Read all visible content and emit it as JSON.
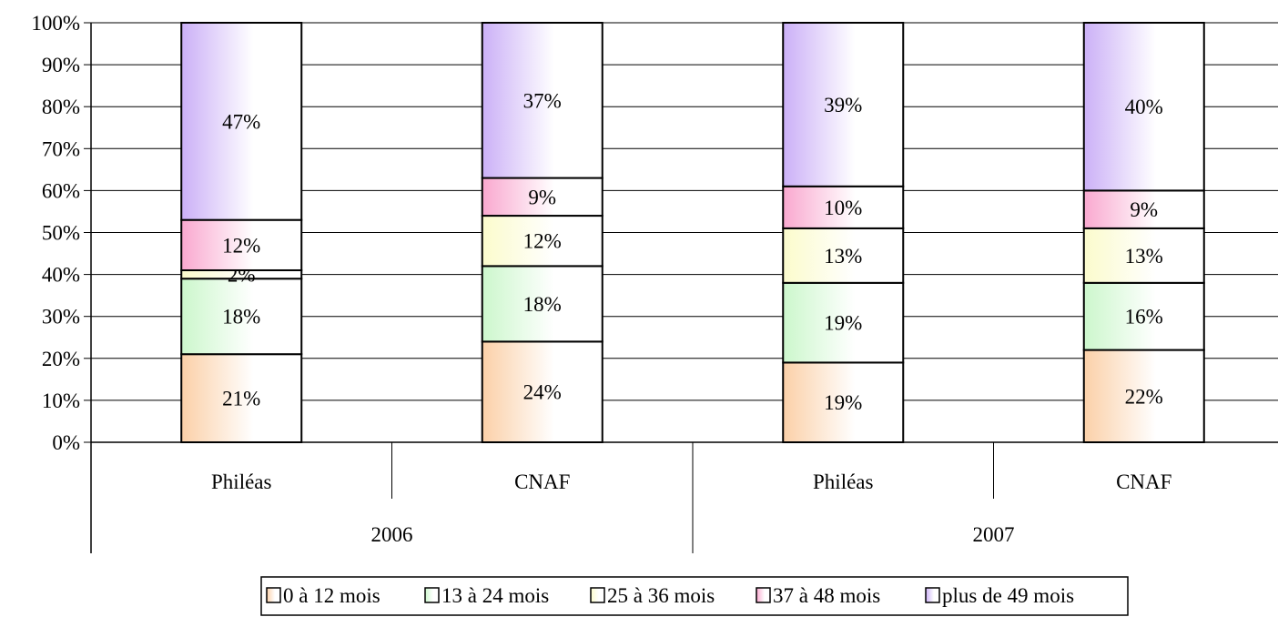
{
  "chart_data": {
    "type": "bar",
    "stacked": "percent",
    "groups": [
      {
        "label": "2006",
        "categories": [
          "Philéas",
          "CNAF"
        ]
      },
      {
        "label": "2007",
        "categories": [
          "Philéas",
          "CNAF"
        ]
      }
    ],
    "categories": [
      "Philéas",
      "CNAF",
      "Philéas",
      "CNAF"
    ],
    "series": [
      {
        "name": "0 à 12 mois",
        "values": [
          21,
          24,
          19,
          22
        ],
        "labels": [
          "21%",
          "24%",
          "19%",
          "22%"
        ],
        "color": "#fbd0a8"
      },
      {
        "name": "13 à 24 mois",
        "values": [
          18,
          18,
          19,
          16
        ],
        "labels": [
          "18%",
          "18%",
          "19%",
          "16%"
        ],
        "color": "#ccf7cc"
      },
      {
        "name": "25 à 36 mois",
        "values": [
          2,
          12,
          13,
          13
        ],
        "labels": [
          "2%",
          "12%",
          "13%",
          "13%"
        ],
        "color": "#fbfbcc"
      },
      {
        "name": "37 à 48 mois",
        "values": [
          12,
          9,
          10,
          9
        ],
        "labels": [
          "12%",
          "9%",
          "10%",
          "9%"
        ],
        "color": "#f9a8cf"
      },
      {
        "name": "plus de 49 mois",
        "values": [
          47,
          37,
          39,
          40
        ],
        "labels": [
          "47%",
          "37%",
          "39%",
          "40%"
        ],
        "color": "#cbb0f7"
      }
    ],
    "yticks": [
      "0%",
      "10%",
      "20%",
      "30%",
      "40%",
      "50%",
      "60%",
      "70%",
      "80%",
      "90%",
      "100%"
    ],
    "ylim": [
      0,
      100
    ],
    "grid": true,
    "legend_position": "bottom"
  }
}
